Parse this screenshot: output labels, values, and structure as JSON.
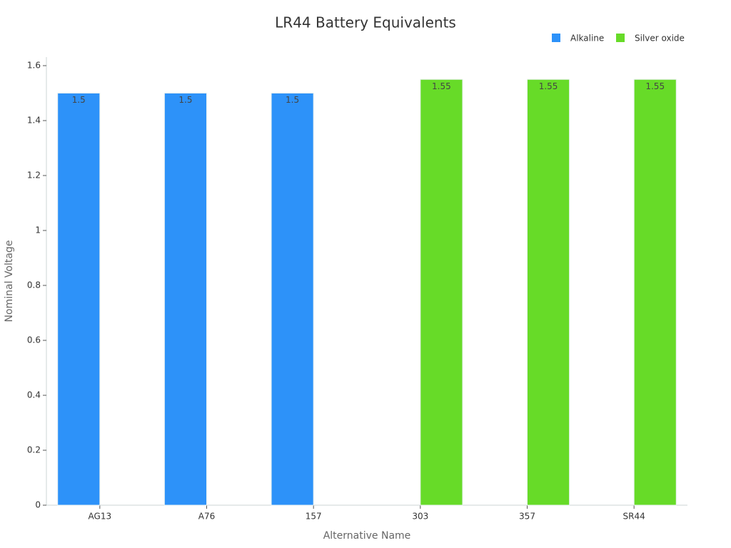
{
  "chart_data": {
    "type": "bar",
    "title": "LR44 Battery Equivalents",
    "x_label": "Alternative Name",
    "y_label": "Nominal Voltage",
    "categories": [
      "AG13",
      "A76",
      "157",
      "303",
      "357",
      "SR44"
    ],
    "series": [
      {
        "name": "Alkaline",
        "color": "#2d92f9",
        "values": [
          1.5,
          1.5,
          1.5,
          null,
          null,
          null
        ]
      },
      {
        "name": "Silver oxide",
        "color": "#67db28",
        "values": [
          null,
          null,
          null,
          1.55,
          1.55,
          1.55
        ]
      }
    ],
    "ylim": [
      0,
      1.6
    ],
    "yticks": [
      0,
      0.2,
      0.4,
      0.6,
      0.8,
      1,
      1.2,
      1.4,
      1.6
    ],
    "grid": false,
    "legend": "top-right"
  }
}
